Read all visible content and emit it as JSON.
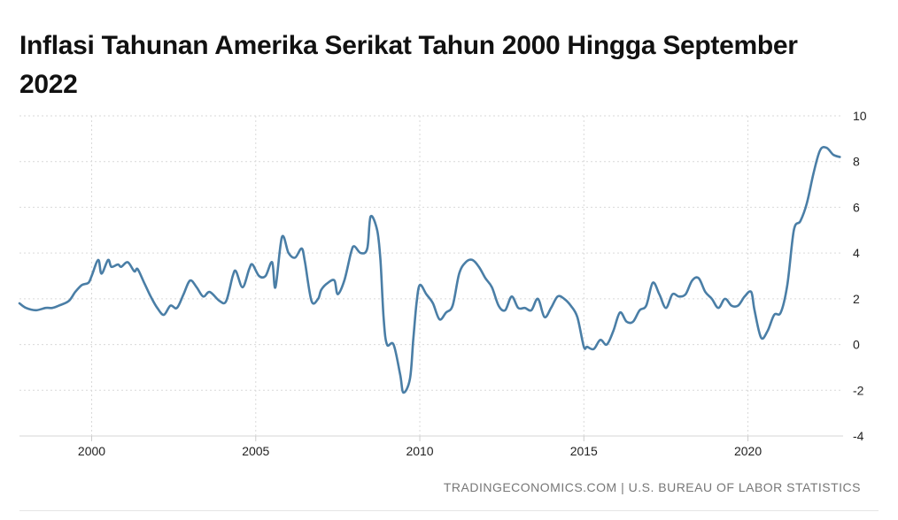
{
  "chart_data": {
    "type": "line",
    "title": "Inflasi Tahunan Amerika Serikat Tahun 2000 Hingga September 2022",
    "xlabel": "",
    "ylabel": "",
    "xlim": [
      1997.8,
      2022.9
    ],
    "ylim": [
      -4,
      10
    ],
    "x_ticks": [
      2000,
      2005,
      2010,
      2015,
      2020
    ],
    "y_ticks": [
      10,
      8,
      6,
      4,
      2,
      0,
      -2,
      -4
    ],
    "grid": true,
    "line_color": "#4a7ea6",
    "source": "TRADINGECONOMICS.COM | U.S. BUREAU OF LABOR STATISTICS",
    "series": [
      {
        "x": [
          1997.8,
          1998.0,
          1998.3,
          1998.6,
          1998.8,
          1999.0,
          1999.3,
          1999.5,
          1999.7,
          1999.9,
          2000.0,
          2000.2,
          2000.3,
          2000.5,
          2000.6,
          2000.8,
          2000.9,
          2001.1,
          2001.3,
          2001.4,
          2001.6,
          2001.8,
          2002.0,
          2002.2,
          2002.4,
          2002.6,
          2002.8,
          2003.0,
          2003.2,
          2003.4,
          2003.6,
          2003.9,
          2004.1,
          2004.3,
          2004.4,
          2004.6,
          2004.8,
          2004.9,
          2005.1,
          2005.3,
          2005.5,
          2005.6,
          2005.8,
          2006.0,
          2006.2,
          2006.4,
          2006.5,
          2006.7,
          2006.9,
          2007.0,
          2007.2,
          2007.4,
          2007.5,
          2007.7,
          2007.9,
          2008.0,
          2008.2,
          2008.4,
          2008.5,
          2008.7,
          2008.8,
          2008.9,
          2009.0,
          2009.2,
          2009.4,
          2009.5,
          2009.7,
          2009.8,
          2009.9,
          2010.0,
          2010.2,
          2010.4,
          2010.6,
          2010.8,
          2011.0,
          2011.2,
          2011.4,
          2011.6,
          2011.8,
          2012.0,
          2012.2,
          2012.4,
          2012.6,
          2012.8,
          2013.0,
          2013.2,
          2013.4,
          2013.6,
          2013.8,
          2014.0,
          2014.2,
          2014.4,
          2014.6,
          2014.8,
          2015.0,
          2015.1,
          2015.3,
          2015.5,
          2015.7,
          2015.9,
          2016.1,
          2016.3,
          2016.5,
          2016.7,
          2016.9,
          2017.1,
          2017.3,
          2017.5,
          2017.7,
          2017.9,
          2018.1,
          2018.3,
          2018.5,
          2018.7,
          2018.9,
          2019.1,
          2019.3,
          2019.5,
          2019.7,
          2019.9,
          2020.1,
          2020.2,
          2020.4,
          2020.6,
          2020.8,
          2021.0,
          2021.2,
          2021.4,
          2021.6,
          2021.8,
          2022.0,
          2022.2,
          2022.4,
          2022.6,
          2022.8
        ],
        "values": [
          1.8,
          1.6,
          1.5,
          1.6,
          1.6,
          1.7,
          1.9,
          2.3,
          2.6,
          2.7,
          3.0,
          3.7,
          3.1,
          3.7,
          3.4,
          3.5,
          3.4,
          3.6,
          3.2,
          3.3,
          2.7,
          2.1,
          1.6,
          1.3,
          1.7,
          1.6,
          2.2,
          2.8,
          2.5,
          2.1,
          2.3,
          1.9,
          1.9,
          3.0,
          3.2,
          2.5,
          3.3,
          3.5,
          3.0,
          3.0,
          3.6,
          2.5,
          4.7,
          4.0,
          3.8,
          4.2,
          3.6,
          1.9,
          2.0,
          2.4,
          2.7,
          2.8,
          2.2,
          2.8,
          4.0,
          4.3,
          4.0,
          4.2,
          5.6,
          5.0,
          3.7,
          1.1,
          0.0,
          0.0,
          -1.3,
          -2.1,
          -1.5,
          0.2,
          1.8,
          2.6,
          2.2,
          1.8,
          1.1,
          1.4,
          1.7,
          3.1,
          3.6,
          3.7,
          3.4,
          2.9,
          2.5,
          1.7,
          1.5,
          2.1,
          1.6,
          1.6,
          1.5,
          2.0,
          1.2,
          1.6,
          2.1,
          2.0,
          1.7,
          1.2,
          -0.1,
          -0.1,
          -0.2,
          0.2,
          0.0,
          0.6,
          1.4,
          1.0,
          1.0,
          1.5,
          1.7,
          2.7,
          2.2,
          1.6,
          2.2,
          2.1,
          2.2,
          2.8,
          2.9,
          2.3,
          2.0,
          1.6,
          2.0,
          1.7,
          1.7,
          2.1,
          2.3,
          1.5,
          0.3,
          0.6,
          1.3,
          1.4,
          2.6,
          5.0,
          5.4,
          6.2,
          7.5,
          8.5,
          8.6,
          8.3,
          8.2
        ]
      }
    ]
  }
}
